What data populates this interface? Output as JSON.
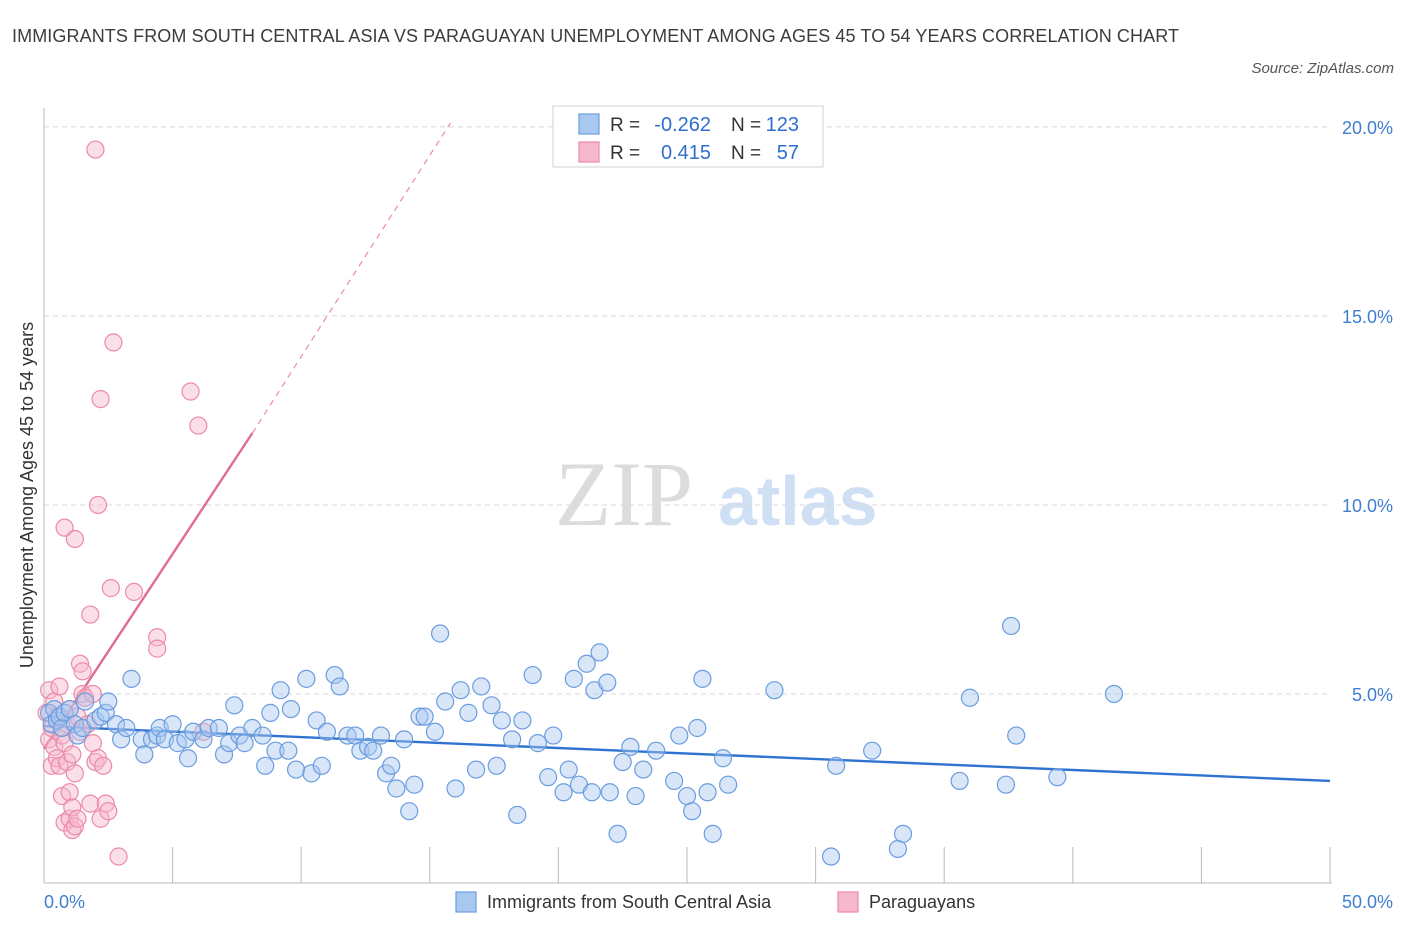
{
  "title": "IMMIGRANTS FROM SOUTH CENTRAL ASIA VS PARAGUAYAN UNEMPLOYMENT AMONG AGES 45 TO 54 YEARS CORRELATION CHART",
  "source": "Source: ZipAtlas.com",
  "watermark": {
    "zip": "ZIP",
    "atlas": "atlas"
  },
  "colors": {
    "blue_fill": "#a9c8f0",
    "blue_stroke": "#6a9de0",
    "blue_line": "#2f73d0",
    "pink_fill": "#f6b8cb",
    "pink_stroke": "#ec8aa8",
    "pink_line": "#e26b93",
    "axis_label": "#3f7fd0",
    "grid": "#d8d8d8"
  },
  "legend": {
    "rows": [
      {
        "r_label": "R =",
        "r_value": "-0.262",
        "n_label": "N =",
        "n_value": "123",
        "color": "blue"
      },
      {
        "r_label": "R =",
        "r_value": "0.415",
        "n_label": "N =",
        "n_value": "57",
        "color": "pink"
      }
    ]
  },
  "bottom_legend": {
    "series1": "Immigrants from South Central Asia",
    "series2": "Paraguayans"
  },
  "chart_data": {
    "type": "scatter",
    "title": "IMMIGRANTS FROM SOUTH CENTRAL ASIA VS PARAGUAYAN UNEMPLOYMENT AMONG AGES 45 TO 54 YEARS CORRELATION CHART",
    "xlabel": "",
    "ylabel": "Unemployment Among Ages 45 to 54 years",
    "xlim": [
      0,
      50
    ],
    "ylim": [
      0,
      20.5
    ],
    "x_tick_labels": {
      "min": "0.0%",
      "max": "50.0%"
    },
    "y_ticks": [
      {
        "value": 5,
        "label": "5.0%"
      },
      {
        "value": 10,
        "label": "10.0%"
      },
      {
        "value": 15,
        "label": "15.0%"
      },
      {
        "value": 20,
        "label": "20.0%"
      }
    ],
    "series": [
      {
        "name": "Immigrants from South Central Asia",
        "color": "blue",
        "R": -0.262,
        "N": 123,
        "trend": {
          "x0": 0,
          "y0": 4.15,
          "x1": 50,
          "y1": 2.7
        },
        "points": [
          [
            0.2,
            4.5
          ],
          [
            0.3,
            4.2
          ],
          [
            0.4,
            4.6
          ],
          [
            0.5,
            4.3
          ],
          [
            0.6,
            4.4
          ],
          [
            0.7,
            4.1
          ],
          [
            0.8,
            4.5
          ],
          [
            1.0,
            4.6
          ],
          [
            1.2,
            4.2
          ],
          [
            1.3,
            3.9
          ],
          [
            1.5,
            4.1
          ],
          [
            1.6,
            4.8
          ],
          [
            2.0,
            4.3
          ],
          [
            2.2,
            4.4
          ],
          [
            2.4,
            4.5
          ],
          [
            2.5,
            4.8
          ],
          [
            2.8,
            4.2
          ],
          [
            3.0,
            3.8
          ],
          [
            3.2,
            4.1
          ],
          [
            3.4,
            5.4
          ],
          [
            3.8,
            3.8
          ],
          [
            3.9,
            3.4
          ],
          [
            4.2,
            3.8
          ],
          [
            4.4,
            3.9
          ],
          [
            4.5,
            4.1
          ],
          [
            4.7,
            3.8
          ],
          [
            5.0,
            4.2
          ],
          [
            5.2,
            3.7
          ],
          [
            5.5,
            3.8
          ],
          [
            5.6,
            3.3
          ],
          [
            5.8,
            4.0
          ],
          [
            6.2,
            3.8
          ],
          [
            6.4,
            4.1
          ],
          [
            6.8,
            4.1
          ],
          [
            7.0,
            3.4
          ],
          [
            7.2,
            3.7
          ],
          [
            7.4,
            4.7
          ],
          [
            7.6,
            3.9
          ],
          [
            7.8,
            3.7
          ],
          [
            8.1,
            4.1
          ],
          [
            8.5,
            3.9
          ],
          [
            8.6,
            3.1
          ],
          [
            8.8,
            4.5
          ],
          [
            9.0,
            3.5
          ],
          [
            9.2,
            5.1
          ],
          [
            9.5,
            3.5
          ],
          [
            9.6,
            4.6
          ],
          [
            9.8,
            3.0
          ],
          [
            10.2,
            5.4
          ],
          [
            10.4,
            2.9
          ],
          [
            10.6,
            4.3
          ],
          [
            10.8,
            3.1
          ],
          [
            11.0,
            4.0
          ],
          [
            11.3,
            5.5
          ],
          [
            11.5,
            5.2
          ],
          [
            11.8,
            3.9
          ],
          [
            12.1,
            3.9
          ],
          [
            12.3,
            3.5
          ],
          [
            12.6,
            3.6
          ],
          [
            12.8,
            3.5
          ],
          [
            13.1,
            3.9
          ],
          [
            13.3,
            2.9
          ],
          [
            13.5,
            3.1
          ],
          [
            13.7,
            2.5
          ],
          [
            14.0,
            3.8
          ],
          [
            14.2,
            1.9
          ],
          [
            14.4,
            2.6
          ],
          [
            14.6,
            4.4
          ],
          [
            14.8,
            4.4
          ],
          [
            15.2,
            4.0
          ],
          [
            15.4,
            6.6
          ],
          [
            15.6,
            4.8
          ],
          [
            16.0,
            2.5
          ],
          [
            16.2,
            5.1
          ],
          [
            16.5,
            4.5
          ],
          [
            16.8,
            3.0
          ],
          [
            17.0,
            5.2
          ],
          [
            17.4,
            4.7
          ],
          [
            17.6,
            3.1
          ],
          [
            17.8,
            4.3
          ],
          [
            18.2,
            3.8
          ],
          [
            18.4,
            1.8
          ],
          [
            18.6,
            4.3
          ],
          [
            19.0,
            5.5
          ],
          [
            19.2,
            3.7
          ],
          [
            19.6,
            2.8
          ],
          [
            19.8,
            3.9
          ],
          [
            20.2,
            2.4
          ],
          [
            20.4,
            3.0
          ],
          [
            20.6,
            5.4
          ],
          [
            20.8,
            2.6
          ],
          [
            21.1,
            5.8
          ],
          [
            21.3,
            2.4
          ],
          [
            21.4,
            5.1
          ],
          [
            21.6,
            6.1
          ],
          [
            21.9,
            5.3
          ],
          [
            22.0,
            2.4
          ],
          [
            22.3,
            1.3
          ],
          [
            22.5,
            3.2
          ],
          [
            22.8,
            3.6
          ],
          [
            23.0,
            2.3
          ],
          [
            23.3,
            3.0
          ],
          [
            23.8,
            3.5
          ],
          [
            24.5,
            2.7
          ],
          [
            24.7,
            3.9
          ],
          [
            25.0,
            2.3
          ],
          [
            25.2,
            1.9
          ],
          [
            25.4,
            4.1
          ],
          [
            25.6,
            5.4
          ],
          [
            25.8,
            2.4
          ],
          [
            26.0,
            1.3
          ],
          [
            26.4,
            3.3
          ],
          [
            26.6,
            2.6
          ],
          [
            28.4,
            5.1
          ],
          [
            30.6,
            0.7
          ],
          [
            30.8,
            3.1
          ],
          [
            32.2,
            3.5
          ],
          [
            33.2,
            0.9
          ],
          [
            33.4,
            1.3
          ],
          [
            35.6,
            2.7
          ],
          [
            36.0,
            4.9
          ],
          [
            37.4,
            2.6
          ],
          [
            37.6,
            6.8
          ],
          [
            37.8,
            3.9
          ],
          [
            39.4,
            2.8
          ],
          [
            41.6,
            5.0
          ]
        ]
      },
      {
        "name": "Paraguayans",
        "color": "pink",
        "R": 0.415,
        "N": 57,
        "trend": {
          "x0": 0,
          "y0": 3.55,
          "x1": 8.1,
          "y1": 11.9
        },
        "trend_dashed": {
          "x0": 8.1,
          "y0": 11.9,
          "x1": 15.8,
          "y1": 20.1
        },
        "points": [
          [
            0.1,
            4.5
          ],
          [
            0.2,
            3.8
          ],
          [
            0.2,
            5.1
          ],
          [
            0.3,
            4.1
          ],
          [
            0.3,
            3.1
          ],
          [
            0.4,
            3.6
          ],
          [
            0.4,
            4.8
          ],
          [
            0.5,
            3.3
          ],
          [
            0.5,
            4.4
          ],
          [
            0.6,
            5.2
          ],
          [
            0.6,
            3.1
          ],
          [
            0.7,
            2.3
          ],
          [
            0.7,
            3.9
          ],
          [
            0.8,
            3.7
          ],
          [
            0.8,
            9.4
          ],
          [
            0.8,
            1.6
          ],
          [
            0.9,
            4.2
          ],
          [
            0.9,
            3.2
          ],
          [
            1.0,
            1.7
          ],
          [
            1.0,
            4.6
          ],
          [
            1.0,
            2.4
          ],
          [
            1.1,
            2.0
          ],
          [
            1.1,
            1.4
          ],
          [
            1.1,
            3.4
          ],
          [
            1.2,
            9.1
          ],
          [
            1.2,
            1.5
          ],
          [
            1.2,
            2.9
          ],
          [
            1.3,
            1.7
          ],
          [
            1.3,
            4.4
          ],
          [
            1.4,
            4.0
          ],
          [
            1.4,
            5.8
          ],
          [
            1.5,
            5.0
          ],
          [
            1.5,
            5.6
          ],
          [
            1.6,
            4.9
          ],
          [
            1.7,
            4.2
          ],
          [
            1.8,
            7.1
          ],
          [
            1.8,
            2.1
          ],
          [
            1.9,
            3.7
          ],
          [
            1.9,
            5.0
          ],
          [
            2.0,
            19.4
          ],
          [
            2.0,
            3.2
          ],
          [
            2.1,
            3.3
          ],
          [
            2.1,
            10.0
          ],
          [
            2.2,
            12.8
          ],
          [
            2.2,
            1.7
          ],
          [
            2.3,
            3.1
          ],
          [
            2.4,
            2.1
          ],
          [
            2.5,
            1.9
          ],
          [
            2.6,
            7.8
          ],
          [
            2.7,
            14.3
          ],
          [
            2.9,
            0.7
          ],
          [
            3.5,
            7.7
          ],
          [
            4.4,
            6.5
          ],
          [
            4.4,
            6.2
          ],
          [
            5.7,
            13.0
          ],
          [
            6.0,
            12.1
          ],
          [
            6.2,
            4.0
          ]
        ]
      }
    ]
  }
}
